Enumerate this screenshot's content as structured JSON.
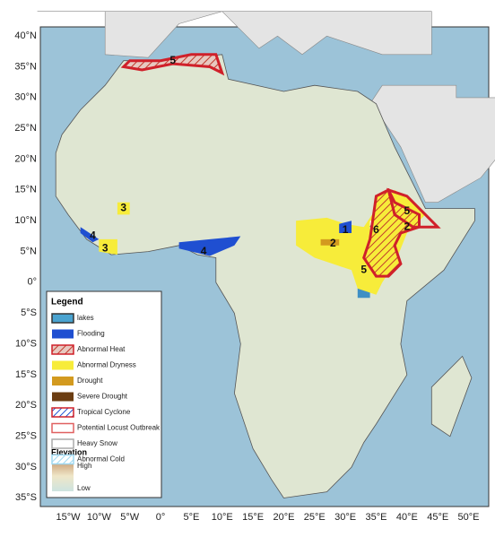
{
  "map": {
    "lat_labels": [
      "40°N",
      "35°N",
      "30°N",
      "25°N",
      "20°N",
      "15°N",
      "10°N",
      "5°N",
      "0°",
      "5°S",
      "10°S",
      "15°S",
      "20°S",
      "25°S",
      "30°S",
      "35°S"
    ],
    "lon_labels": [
      "15°W",
      "10°W",
      "5°W",
      "0°",
      "5°E",
      "10°E",
      "15°E",
      "20°E",
      "25°E",
      "30°E",
      "35°E",
      "40°E",
      "45°E",
      "50°E"
    ],
    "region_labels": [
      "5",
      "1",
      "2",
      "3",
      "3",
      "4",
      "4",
      "2",
      "6",
      "5",
      "5"
    ],
    "legend": {
      "title": "Legend",
      "items": [
        "lakes",
        "Flooding",
        "Abnormal Heat",
        "Abnormal Dryness",
        "Drought",
        "Severe Drought",
        "Tropical Cyclone",
        "Potential Locust Outbreak",
        "Heavy Snow",
        "Abnormal Cold"
      ],
      "elevation_title": "Elevation",
      "elevation_high": "High",
      "elevation_low": "Low"
    }
  }
}
